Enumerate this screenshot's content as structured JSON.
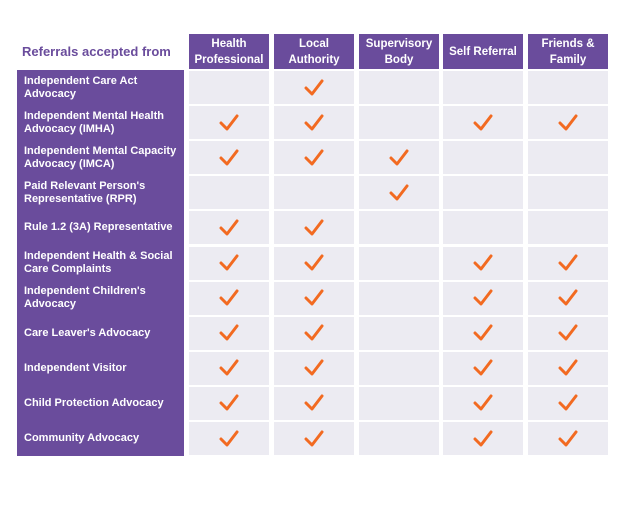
{
  "table": {
    "corner": "Referrals accepted from",
    "columns": [
      "Health Professional",
      "Local Authority",
      "Supervisory Body",
      "Self Referral",
      "Friends & Family"
    ],
    "rows": [
      {
        "label": "Independent Care Act Advocacy",
        "checks": [
          false,
          true,
          false,
          false,
          false
        ]
      },
      {
        "label": "Independent Mental Health Advocacy (IMHA)",
        "checks": [
          true,
          true,
          false,
          true,
          true
        ]
      },
      {
        "label": "Independent Mental Capacity Advocacy (IMCA)",
        "checks": [
          true,
          true,
          true,
          false,
          false
        ]
      },
      {
        "label": "Paid Relevant Person's Representative (RPR)",
        "checks": [
          false,
          false,
          true,
          false,
          false
        ]
      },
      {
        "label": "Rule 1.2 (3A) Representative",
        "checks": [
          true,
          true,
          false,
          false,
          false
        ]
      },
      {
        "label": "Independent Health & Social Care Complaints",
        "checks": [
          true,
          true,
          false,
          true,
          true
        ]
      },
      {
        "label": "Independent Children's Advocacy",
        "checks": [
          true,
          true,
          false,
          true,
          true
        ]
      },
      {
        "label": "Care Leaver's Advocacy",
        "checks": [
          true,
          true,
          false,
          true,
          true
        ]
      },
      {
        "label": "Independent Visitor",
        "checks": [
          true,
          true,
          false,
          true,
          true
        ]
      },
      {
        "label": "Child Protection Advocacy",
        "checks": [
          true,
          true,
          false,
          true,
          true
        ]
      },
      {
        "label": "Community Advocacy",
        "checks": [
          true,
          true,
          false,
          true,
          true
        ]
      }
    ]
  }
}
